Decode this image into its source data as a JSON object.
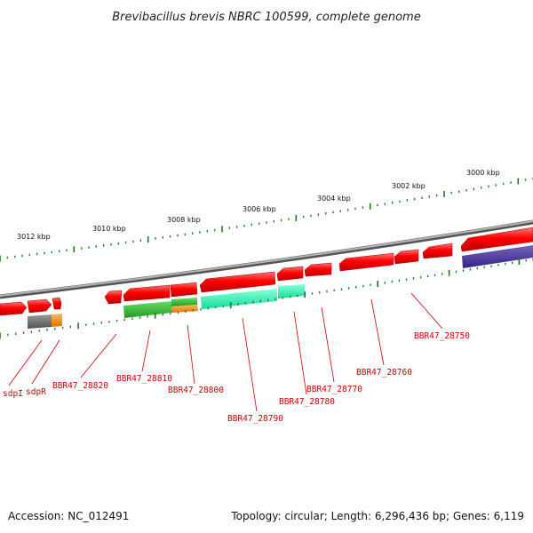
{
  "title": "Brevibacillus brevis NBRC 100599, complete genome",
  "footer": {
    "accession": "Accession: NC_012491",
    "topology": "Topology: circular; Length: 6,296,436 bp; Genes: 6,119"
  },
  "colors": {
    "backbone": "#8a8a8a",
    "forward_gene": "#ff0000",
    "tick": "#1a7a1a",
    "label_line": "#cc0000",
    "label_text": "#cc0000",
    "cog_green": "#33bb33",
    "cog_orange": "#ff9900",
    "cog_aqua": "#22ffbb",
    "cog_gray": "#666666",
    "cog_purple": "#443399"
  },
  "kbp_labels": [
    "3012 kbp",
    "3010 kbp",
    "3008 kbp",
    "3006 kbp",
    "3004 kbp",
    "3002 kbp",
    "3000 kbp"
  ],
  "gene_labels": [
    "sdpI",
    "sdpR",
    "BBR47_28820",
    "BBR47_28810",
    "BBR47_28800",
    "BBR47_28790",
    "BBR47_28780",
    "BBR47_28770",
    "BBR47_28760",
    "BBR47_28750"
  ]
}
